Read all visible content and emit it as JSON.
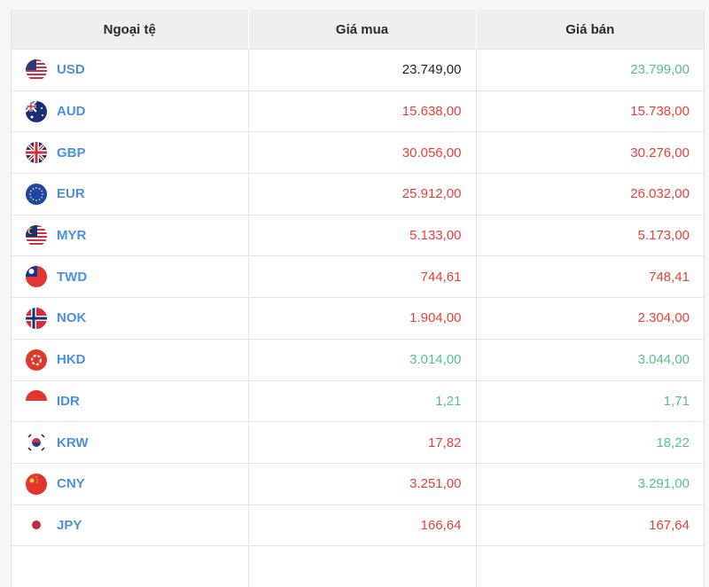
{
  "header": {
    "currency": "Ngoại tệ",
    "buy": "Giá mua",
    "sell": "Giá bán"
  },
  "colors": {
    "up": "#55c287",
    "down": "#e8403a",
    "neutral": "#222222",
    "code": "#4a90e2"
  },
  "rows": [
    {
      "code": "USD",
      "flag": "us-flag-icon",
      "buy": "23.749,00",
      "buy_color": "neutral",
      "sell": "23.799,00",
      "sell_color": "up"
    },
    {
      "code": "AUD",
      "flag": "au-flag-icon",
      "buy": "15.638,00",
      "buy_color": "down",
      "sell": "15.738,00",
      "sell_color": "down"
    },
    {
      "code": "GBP",
      "flag": "gb-flag-icon",
      "buy": "30.056,00",
      "buy_color": "down",
      "sell": "30.276,00",
      "sell_color": "down"
    },
    {
      "code": "EUR",
      "flag": "eu-flag-icon",
      "buy": "25.912,00",
      "buy_color": "down",
      "sell": "26.032,00",
      "sell_color": "down"
    },
    {
      "code": "MYR",
      "flag": "my-flag-icon",
      "buy": "5.133,00",
      "buy_color": "down",
      "sell": "5.173,00",
      "sell_color": "down"
    },
    {
      "code": "TWD",
      "flag": "tw-flag-icon",
      "buy": "744,61",
      "buy_color": "down",
      "sell": "748,41",
      "sell_color": "down"
    },
    {
      "code": "NOK",
      "flag": "no-flag-icon",
      "buy": "1.904,00",
      "buy_color": "down",
      "sell": "2.304,00",
      "sell_color": "down"
    },
    {
      "code": "HKD",
      "flag": "hk-flag-icon",
      "buy": "3.014,00",
      "buy_color": "up",
      "sell": "3.044,00",
      "sell_color": "up"
    },
    {
      "code": "IDR",
      "flag": "id-flag-icon",
      "buy": "1,21",
      "buy_color": "up",
      "sell": "1,71",
      "sell_color": "up"
    },
    {
      "code": "KRW",
      "flag": "kr-flag-icon",
      "buy": "17,82",
      "buy_color": "down",
      "sell": "18,22",
      "sell_color": "up"
    },
    {
      "code": "CNY",
      "flag": "cn-flag-icon",
      "buy": "3.251,00",
      "buy_color": "down",
      "sell": "3.291,00",
      "sell_color": "up"
    },
    {
      "code": "JPY",
      "flag": "jp-flag-icon",
      "buy": "166,64",
      "buy_color": "down",
      "sell": "167,64",
      "sell_color": "down"
    }
  ]
}
